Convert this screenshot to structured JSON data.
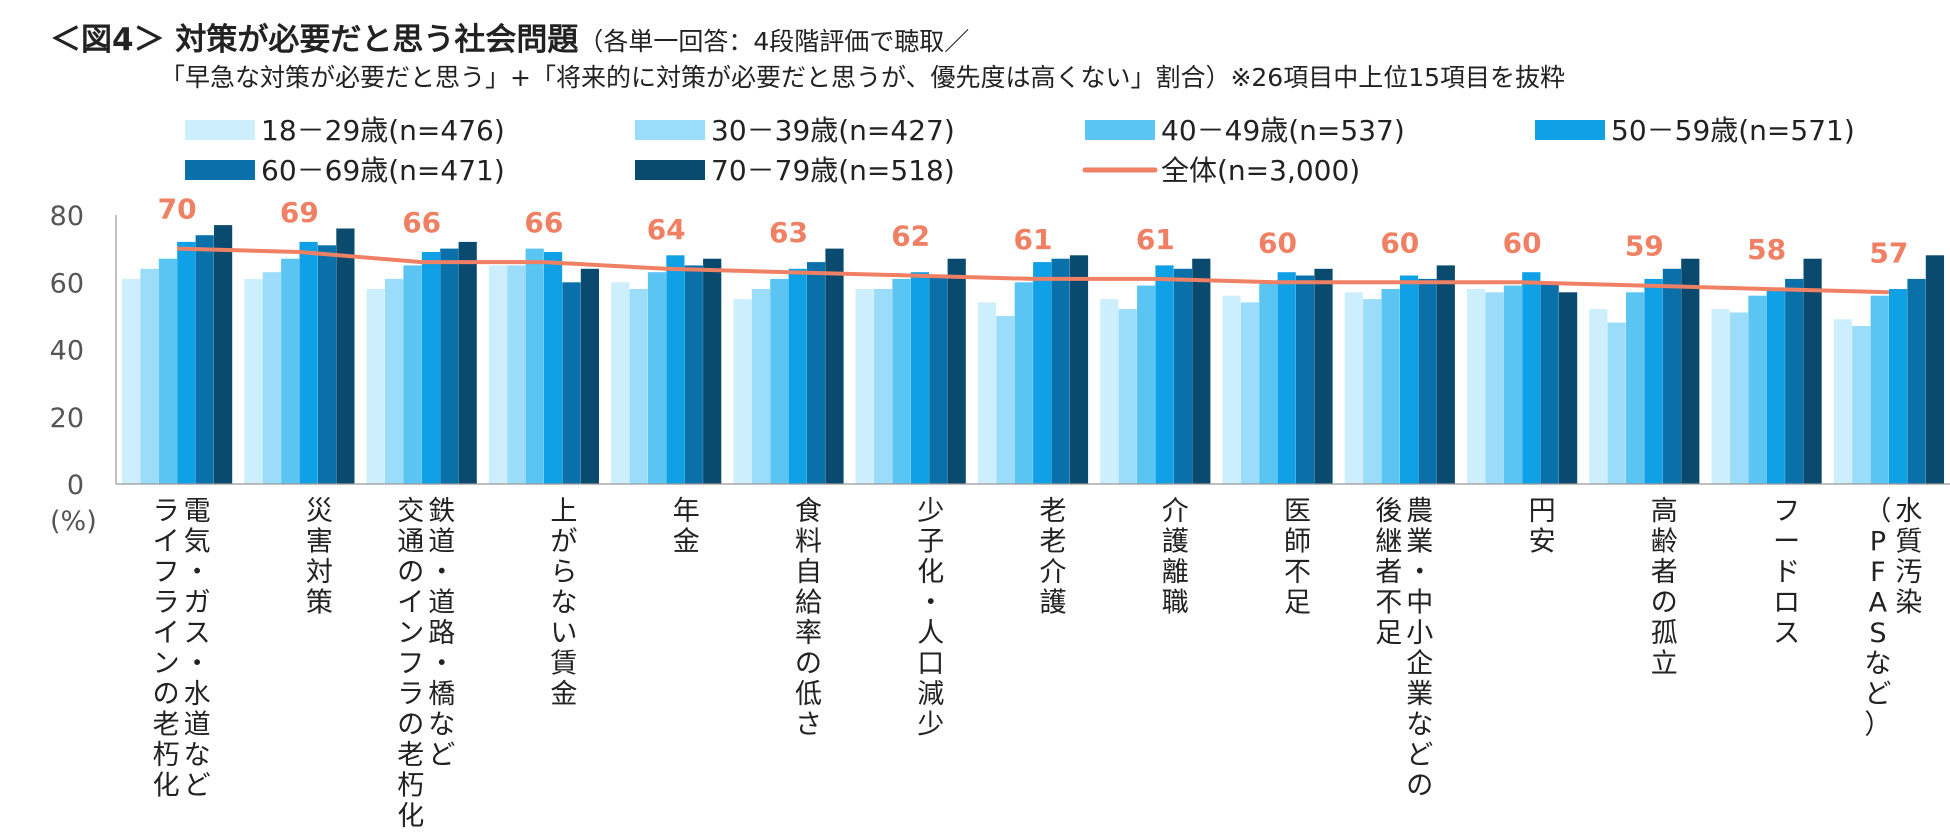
{
  "header": {
    "title": "＜図4＞ 対策が必要だと思う社会問題",
    "title_note": "（各単一回答：4段階評価で聴取／",
    "subtitle": "「早急な対策が必要だと思う」+「将来的に対策が必要だと思うが、優先度は高くない」割合）※26項目中上位15項目を抜粋"
  },
  "chart_data": {
    "type": "bar",
    "title": "＜図4＞ 対策が必要だと思う社会問題",
    "ylabel": "(%)",
    "ylim": [
      0,
      80
    ],
    "yticks": [
      0,
      20,
      40,
      60,
      80
    ],
    "categories": [
      "電気・ガス・水道など ライフラインの老朽化",
      "災害対策",
      "鉄道・道路・橋など 交通のインフラの老朽化",
      "上がらない賃金",
      "年金",
      "食料自給率の低さ",
      "少子化・人口減少",
      "老老介護",
      "介護離職",
      "医師不足",
      "農業・中小企業などの 後継者不足",
      "円安",
      "高齢者の孤立",
      "フードロス",
      "水質汚染 （PFASなど）"
    ],
    "series": [
      {
        "name": "18－29歳(n=476)",
        "color": "#cdeefd",
        "values": [
          61,
          61,
          58,
          65,
          60,
          55,
          58,
          54,
          55,
          56,
          57,
          58,
          52,
          52,
          49
        ]
      },
      {
        "name": "30－39歳(n=427)",
        "color": "#9bdcfa",
        "values": [
          64,
          63,
          61,
          65,
          58,
          58,
          58,
          50,
          52,
          54,
          55,
          57,
          48,
          51,
          47
        ]
      },
      {
        "name": "40－49歳(n=537)",
        "color": "#5ac5f3",
        "values": [
          67,
          67,
          65,
          70,
          63,
          61,
          61,
          60,
          59,
          60,
          58,
          59,
          57,
          56,
          56
        ]
      },
      {
        "name": "50－59歳(n=571)",
        "color": "#10a0e6",
        "values": [
          72,
          72,
          69,
          69,
          68,
          64,
          63,
          66,
          65,
          63,
          62,
          63,
          61,
          58,
          58
        ]
      },
      {
        "name": "60－69歳(n=471)",
        "color": "#0a70aa",
        "values": [
          74,
          71,
          70,
          60,
          65,
          66,
          62,
          67,
          64,
          62,
          61,
          60,
          64,
          61,
          61
        ]
      },
      {
        "name": "70－79歳(n=518)",
        "color": "#0a4a6e",
        "values": [
          77,
          76,
          72,
          64,
          67,
          70,
          67,
          68,
          67,
          64,
          65,
          57,
          67,
          67,
          68
        ]
      }
    ],
    "line": {
      "name": "全体(n=3,000)",
      "color": "#f08064",
      "values": [
        70,
        69,
        66,
        66,
        64,
        63,
        62,
        61,
        61,
        60,
        60,
        60,
        59,
        58,
        57
      ]
    },
    "grid": false,
    "legend_position": "top"
  }
}
